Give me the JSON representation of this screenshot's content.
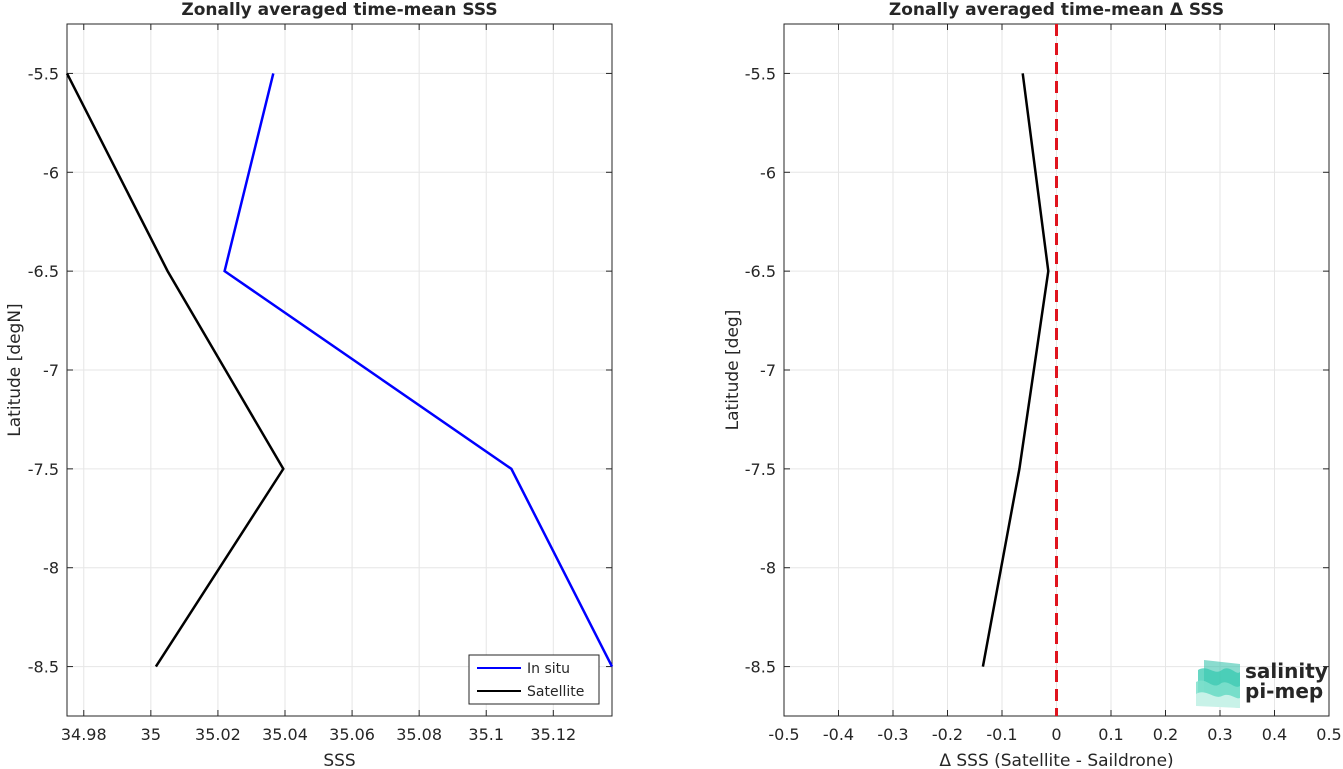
{
  "chart_data": [
    {
      "type": "line",
      "title": "Zonally averaged time-mean SSS",
      "xlabel": "SSS",
      "ylabel": "Latitude [degN]",
      "xlim": [
        34.975,
        35.1375
      ],
      "ylim": [
        -8.75,
        -5.25
      ],
      "xticks": [
        34.98,
        35,
        35.02,
        35.04,
        35.06,
        35.08,
        35.1,
        35.12
      ],
      "xtick_labels": [
        "34.98",
        "35",
        "35.02",
        "35.04",
        "35.06",
        "35.08",
        "35.1",
        "35.12"
      ],
      "yticks": [
        -5.5,
        -6,
        -6.5,
        -7,
        -7.5,
        -8,
        -8.5
      ],
      "ytick_labels": [
        "-5.5",
        "-6",
        "-6.5",
        "-7",
        "-7.5",
        "-8",
        "-8.5"
      ],
      "grid": true,
      "legend_position": "bottom-right",
      "series": [
        {
          "name": "In situ",
          "color": "#0000ff",
          "points": [
            {
              "sss": 35.0365,
              "lat": -5.5
            },
            {
              "sss": 35.022,
              "lat": -6.5
            },
            {
              "sss": 35.1075,
              "lat": -7.5
            },
            {
              "sss": 35.1375,
              "lat": -8.5
            }
          ]
        },
        {
          "name": "Satellite",
          "color": "#000000",
          "points": [
            {
              "sss": 34.975,
              "lat": -5.5
            },
            {
              "sss": 35.005,
              "lat": -6.5
            },
            {
              "sss": 35.0395,
              "lat": -7.5
            },
            {
              "sss": 35.0015,
              "lat": -8.5
            }
          ]
        }
      ]
    },
    {
      "type": "line",
      "title": "Zonally averaged time-mean Δ SSS",
      "xlabel": "Δ SSS (Satellite - Saildrone)",
      "ylabel": "Latitude [deg]",
      "xlim": [
        -0.5,
        0.5
      ],
      "ylim": [
        -8.75,
        -5.25
      ],
      "xticks": [
        -0.5,
        -0.4,
        -0.3,
        -0.2,
        -0.1,
        0,
        0.1,
        0.2,
        0.3,
        0.4,
        0.5
      ],
      "xtick_labels": [
        "-0.5",
        "-0.4",
        "-0.3",
        "-0.2",
        "-0.1",
        "0",
        "0.1",
        "0.2",
        "0.3",
        "0.4",
        "0.5"
      ],
      "yticks": [
        -5.5,
        -6,
        -6.5,
        -7,
        -7.5,
        -8,
        -8.5
      ],
      "ytick_labels": [
        "-5.5",
        "-6",
        "-6.5",
        "-7",
        "-7.5",
        "-8",
        "-8.5"
      ],
      "grid": true,
      "reference_line": {
        "x": 0,
        "color": "#e0141e",
        "style": "dashed"
      },
      "series": [
        {
          "color": "#000000",
          "points": [
            {
              "dsss": -0.062,
              "lat": -5.5
            },
            {
              "dsss": -0.015,
              "lat": -6.5
            },
            {
              "dsss": -0.068,
              "lat": -7.5
            },
            {
              "dsss": -0.135,
              "lat": -8.5
            }
          ]
        }
      ]
    }
  ],
  "logo": {
    "line1": "salinity",
    "line2": "pi-mep",
    "color_text": "#1aa99a",
    "color_icon": "#2bbfa8"
  }
}
